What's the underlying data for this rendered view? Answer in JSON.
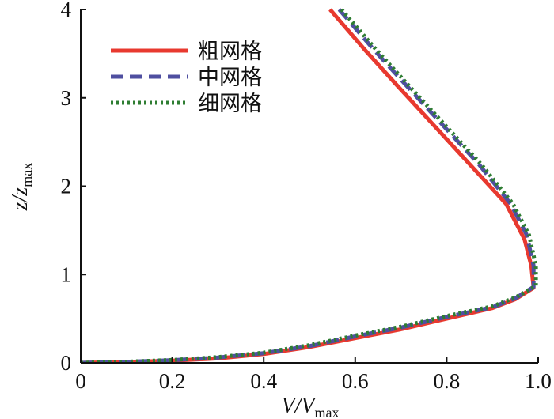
{
  "chart_data": {
    "type": "line",
    "xlabel": {
      "main": "V/V",
      "sub": "max"
    },
    "ylabel": {
      "main": "z/z",
      "sub": "max"
    },
    "xlim": [
      0,
      1.0
    ],
    "ylim": [
      0,
      4
    ],
    "xticks": [
      0,
      0.2,
      0.4,
      0.6,
      0.8,
      1.0
    ],
    "xtick_labels": [
      "0",
      "0.2",
      "0.4",
      "0.6",
      "0.8",
      "1.0"
    ],
    "yticks": [
      0,
      1,
      2,
      3,
      4
    ],
    "ytick_labels": [
      "0",
      "1",
      "2",
      "3",
      "4"
    ],
    "grid": false,
    "legend_position": "top-left",
    "series": [
      {
        "name": "粗网格",
        "color": "#e8392f",
        "style": "solid",
        "points": [
          [
            0,
            0
          ],
          [
            0.1,
            0.01
          ],
          [
            0.2,
            0.025
          ],
          [
            0.3,
            0.05
          ],
          [
            0.4,
            0.1
          ],
          [
            0.5,
            0.18
          ],
          [
            0.6,
            0.28
          ],
          [
            0.7,
            0.38
          ],
          [
            0.8,
            0.5
          ],
          [
            0.9,
            0.62
          ],
          [
            0.95,
            0.72
          ],
          [
            0.99,
            0.85
          ],
          [
            0.985,
            1.1
          ],
          [
            0.97,
            1.4
          ],
          [
            0.93,
            1.8
          ],
          [
            0.85,
            2.25
          ],
          [
            0.77,
            2.7
          ],
          [
            0.69,
            3.15
          ],
          [
            0.62,
            3.55
          ],
          [
            0.545,
            4.0
          ]
        ]
      },
      {
        "name": "中网格",
        "color": "#4f4fa0",
        "style": "dashed",
        "points": [
          [
            0,
            0
          ],
          [
            0.1,
            0.012
          ],
          [
            0.2,
            0.03
          ],
          [
            0.3,
            0.06
          ],
          [
            0.4,
            0.11
          ],
          [
            0.5,
            0.19
          ],
          [
            0.6,
            0.3
          ],
          [
            0.7,
            0.4
          ],
          [
            0.8,
            0.52
          ],
          [
            0.9,
            0.63
          ],
          [
            0.95,
            0.73
          ],
          [
            0.99,
            0.86
          ],
          [
            0.99,
            1.1
          ],
          [
            0.975,
            1.45
          ],
          [
            0.94,
            1.8
          ],
          [
            0.87,
            2.25
          ],
          [
            0.79,
            2.7
          ],
          [
            0.71,
            3.15
          ],
          [
            0.64,
            3.55
          ],
          [
            0.565,
            4.0
          ]
        ]
      },
      {
        "name": "细网格",
        "color": "#2e7d32",
        "style": "dotted",
        "points": [
          [
            0,
            0
          ],
          [
            0.1,
            0.013
          ],
          [
            0.2,
            0.032
          ],
          [
            0.3,
            0.065
          ],
          [
            0.4,
            0.115
          ],
          [
            0.5,
            0.2
          ],
          [
            0.6,
            0.31
          ],
          [
            0.7,
            0.41
          ],
          [
            0.8,
            0.53
          ],
          [
            0.9,
            0.64
          ],
          [
            0.95,
            0.74
          ],
          [
            0.995,
            0.87
          ],
          [
            0.995,
            1.1
          ],
          [
            0.98,
            1.45
          ],
          [
            0.945,
            1.8
          ],
          [
            0.875,
            2.25
          ],
          [
            0.795,
            2.7
          ],
          [
            0.715,
            3.15
          ],
          [
            0.645,
            3.55
          ],
          [
            0.57,
            4.0
          ]
        ]
      }
    ]
  }
}
